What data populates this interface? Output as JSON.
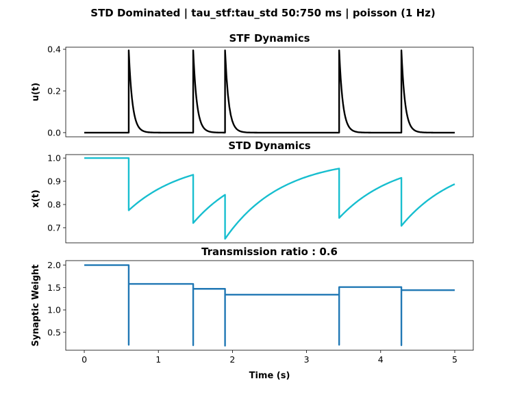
{
  "figure": {
    "suptitle": "STD Dominated | tau_stf:tau_std 50:750 ms | poisson (1 Hz)"
  },
  "chart_data": [
    {
      "type": "line",
      "title": "STF Dynamics",
      "xlabel": "",
      "ylabel": "u(t)",
      "xlim": [
        -0.25,
        5.25
      ],
      "ylim": [
        -0.02,
        0.41
      ],
      "xticks_visible": false,
      "yticks": [
        "0.0",
        "0.2",
        "0.4"
      ],
      "ytick_values": [
        0.0,
        0.2,
        0.4
      ],
      "color": "#000000",
      "spikes": [
        0.6,
        1.47,
        1.9,
        3.44,
        4.28
      ],
      "baseline": 0.0,
      "peak": 0.395,
      "tau_s": 0.05,
      "t_end": 5.0
    },
    {
      "type": "line",
      "title": "STD Dynamics",
      "xlabel": "",
      "ylabel": "x(t)",
      "xlim": [
        -0.25,
        5.25
      ],
      "ylim": [
        0.635,
        1.015
      ],
      "xticks_visible": false,
      "yticks": [
        "0.7",
        "0.8",
        "0.9",
        "1.0"
      ],
      "ytick_values": [
        0.7,
        0.8,
        0.9,
        1.0
      ],
      "color": "#17becf",
      "tau_s": 0.75,
      "t_end": 5.0,
      "points": [
        [
          0,
          1.0
        ],
        [
          0.6,
          1.0
        ],
        [
          0.6,
          0.775
        ],
        [
          1.47,
          0.928
        ],
        [
          1.47,
          0.72
        ],
        [
          1.9,
          0.842
        ],
        [
          1.9,
          0.652
        ],
        [
          3.44,
          0.955
        ],
        [
          3.44,
          0.742
        ],
        [
          4.28,
          0.915
        ],
        [
          4.28,
          0.708
        ],
        [
          5.0,
          0.888
        ]
      ]
    },
    {
      "type": "line",
      "title": "Transmission ratio : 0.6",
      "xlabel": "Time (s)",
      "ylabel": "Synaptic Weight",
      "xlim": [
        -0.25,
        5.25
      ],
      "ylim": [
        0.1,
        2.1
      ],
      "xticks": [
        "0",
        "1",
        "2",
        "3",
        "4",
        "5"
      ],
      "xtick_values": [
        0,
        1,
        2,
        3,
        4,
        5
      ],
      "yticks": [
        "0.5",
        "1.0",
        "1.5",
        "2.0"
      ],
      "ytick_values": [
        0.5,
        1.0,
        1.5,
        2.0
      ],
      "color": "#1f77b4",
      "points": [
        [
          0,
          2.0
        ],
        [
          0.6,
          2.0
        ],
        [
          0.6,
          0.22
        ],
        [
          0.6,
          1.58
        ],
        [
          1.47,
          1.58
        ],
        [
          1.47,
          0.21
        ],
        [
          1.47,
          1.47
        ],
        [
          1.9,
          1.47
        ],
        [
          1.9,
          0.2
        ],
        [
          1.9,
          1.34
        ],
        [
          3.44,
          1.34
        ],
        [
          3.44,
          0.22
        ],
        [
          3.44,
          1.51
        ],
        [
          4.28,
          1.51
        ],
        [
          4.28,
          0.21
        ],
        [
          4.28,
          1.44
        ],
        [
          5.0,
          1.44
        ]
      ]
    }
  ]
}
